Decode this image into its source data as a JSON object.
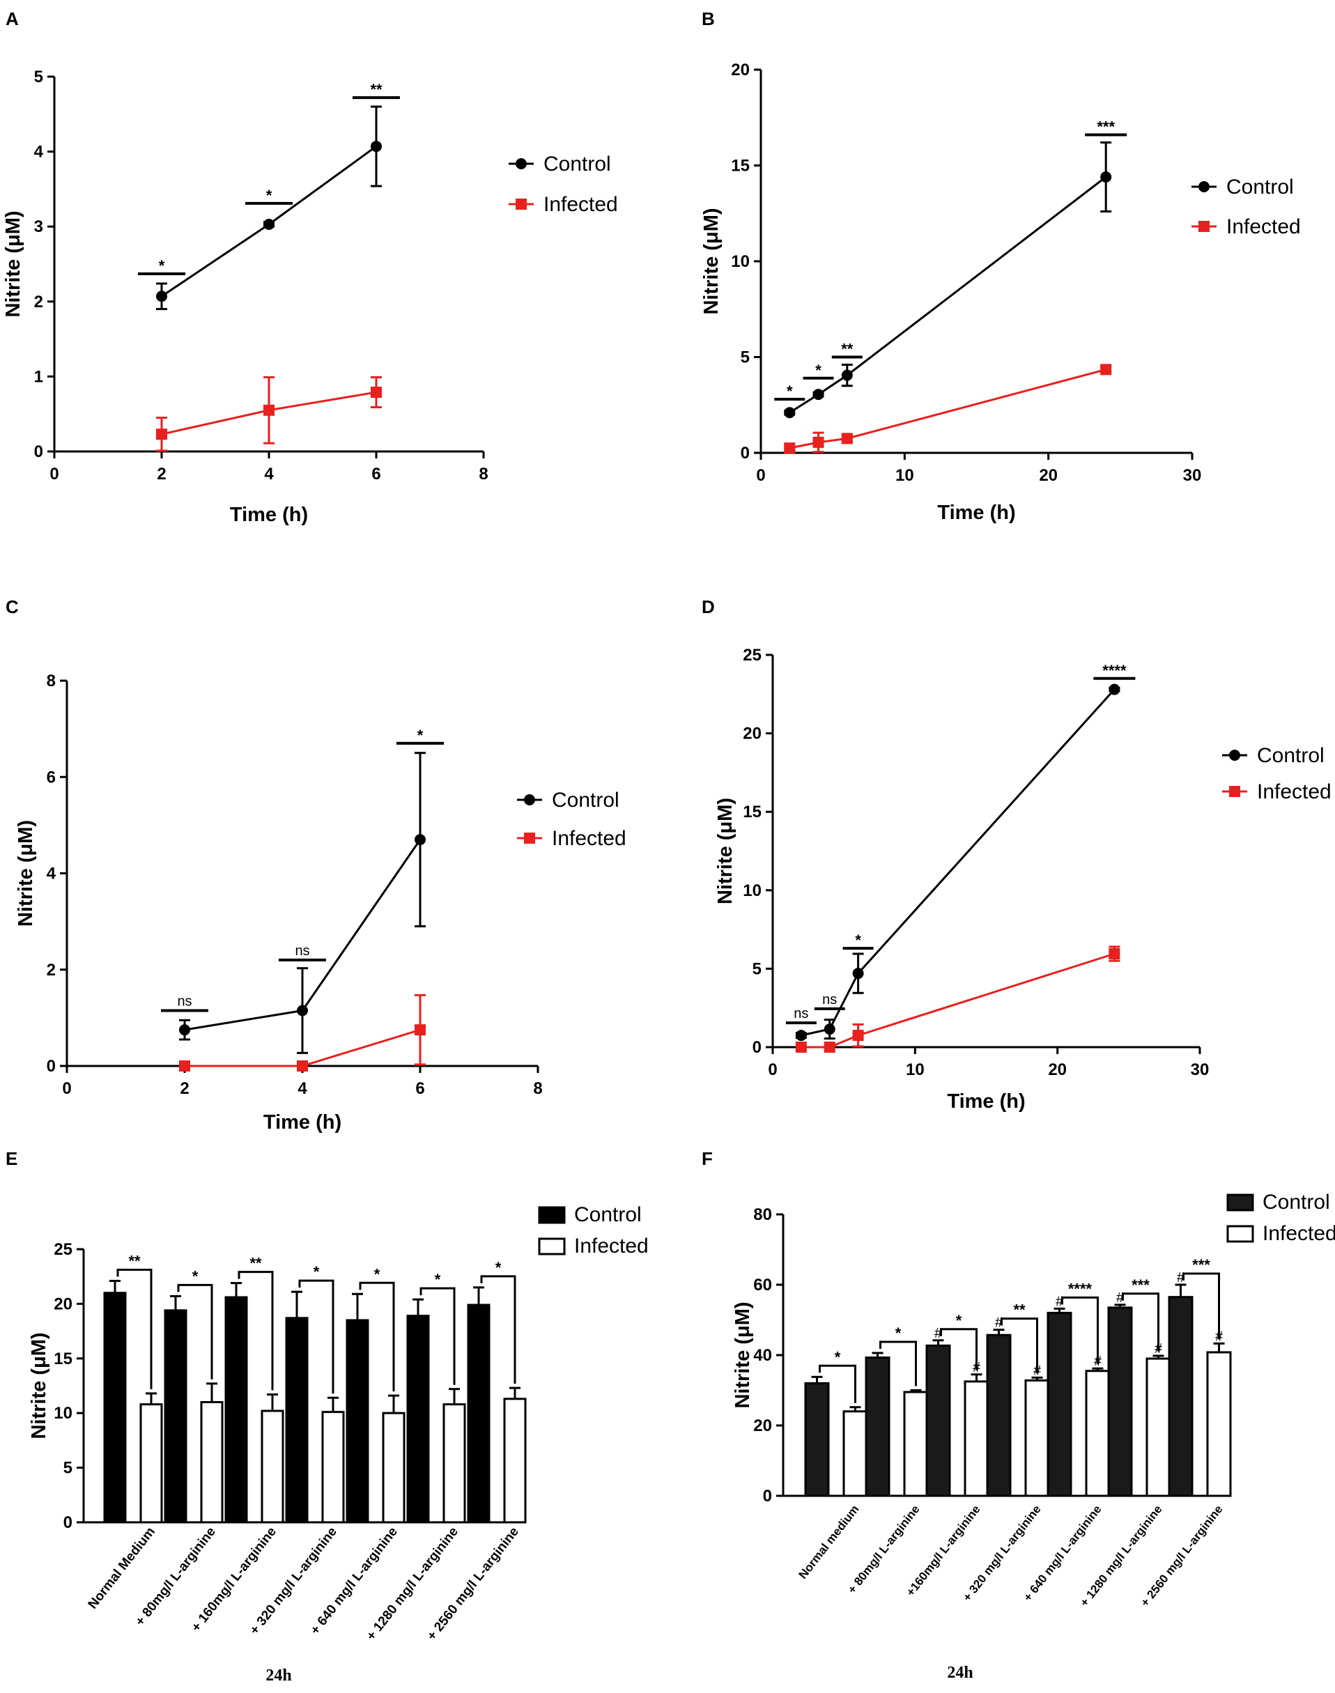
{
  "chart_data": [
    {
      "panel": "A",
      "type": "line",
      "xlabel": "Time (h)",
      "ylabel": "Nitrite (μM)",
      "xlim": [
        0,
        8
      ],
      "ylim": [
        0,
        5
      ],
      "xticks": [
        "0",
        "2",
        "4",
        "6",
        "8"
      ],
      "yticks": [
        "0",
        "1",
        "2",
        "3",
        "4",
        "5"
      ],
      "series": [
        {
          "name": "Control",
          "color": "#000000",
          "marker": "circle",
          "x": [
            2,
            4,
            6
          ],
          "y": [
            2.07,
            3.03,
            4.07
          ],
          "err": [
            0.17,
            0.03,
            0.53
          ]
        },
        {
          "name": "Infected",
          "color": "#e8201e",
          "marker": "square",
          "x": [
            2,
            4,
            6
          ],
          "y": [
            0.23,
            0.55,
            0.79
          ],
          "err": [
            0.22,
            0.44,
            0.2
          ]
        }
      ],
      "annotations": [
        {
          "x": 2,
          "y": 2.37,
          "label": "*"
        },
        {
          "x": 4,
          "y": 3.31,
          "label": "*"
        },
        {
          "x": 6,
          "y": 4.72,
          "label": "**"
        }
      ],
      "legend_position": "right"
    },
    {
      "panel": "B",
      "type": "line",
      "xlabel": "Time (h)",
      "ylabel": "Nitrite (μM)",
      "xlim": [
        0,
        30
      ],
      "ylim": [
        0,
        20
      ],
      "xticks": [
        "0",
        "10",
        "20",
        "30"
      ],
      "yticks": [
        "0",
        "5",
        "10",
        "15",
        "20"
      ],
      "series": [
        {
          "name": "Control",
          "color": "#000000",
          "marker": "circle",
          "x": [
            2,
            4,
            6,
            24
          ],
          "y": [
            2.1,
            3.05,
            4.05,
            14.4
          ],
          "err": [
            0.1,
            0.1,
            0.55,
            1.8
          ]
        },
        {
          "name": "Infected",
          "color": "#e8201e",
          "marker": "square",
          "x": [
            2,
            4,
            6,
            24
          ],
          "y": [
            0.25,
            0.55,
            0.75,
            4.35
          ],
          "err": [
            0.1,
            0.5,
            0.2,
            0.15
          ]
        }
      ],
      "annotations": [
        {
          "x": 2,
          "y": 2.8,
          "label": "*"
        },
        {
          "x": 4,
          "y": 3.9,
          "label": "*"
        },
        {
          "x": 6,
          "y": 5.0,
          "label": "**"
        },
        {
          "x": 24,
          "y": 16.6,
          "label": "***"
        }
      ],
      "legend_position": "right"
    },
    {
      "panel": "C",
      "type": "line",
      "xlabel": "Time (h)",
      "ylabel": "Nitrite (μM)",
      "xlim": [
        0,
        8
      ],
      "ylim": [
        0,
        8
      ],
      "xticks": [
        "0",
        "2",
        "4",
        "6",
        "8"
      ],
      "yticks": [
        "0",
        "2",
        "4",
        "6",
        "8"
      ],
      "series": [
        {
          "name": "Control",
          "color": "#000000",
          "marker": "circle",
          "x": [
            2,
            4,
            6
          ],
          "y": [
            0.75,
            1.15,
            4.7
          ],
          "err": [
            0.2,
            0.88,
            1.8
          ]
        },
        {
          "name": "Infected",
          "color": "#e8201e",
          "marker": "square",
          "x": [
            2,
            4,
            6
          ],
          "y": [
            0.0,
            0.0,
            0.75
          ],
          "err": [
            0.0,
            0.0,
            0.72
          ]
        }
      ],
      "annotations": [
        {
          "x": 2,
          "y": 1.15,
          "label": "ns"
        },
        {
          "x": 4,
          "y": 2.2,
          "label": "ns"
        },
        {
          "x": 6,
          "y": 6.7,
          "label": "*"
        }
      ],
      "legend_position": "right"
    },
    {
      "panel": "D",
      "type": "line",
      "xlabel": "Time (h)",
      "ylabel": "Nitrite (μM)",
      "xlim": [
        0,
        30
      ],
      "ylim": [
        0,
        25
      ],
      "xticks": [
        "0",
        "10",
        "20",
        "30"
      ],
      "yticks": [
        "0",
        "5",
        "10",
        "15",
        "20",
        "25"
      ],
      "series": [
        {
          "name": "Control",
          "color": "#000000",
          "marker": "circle",
          "x": [
            2,
            4,
            6,
            24
          ],
          "y": [
            0.75,
            1.15,
            4.7,
            22.8
          ],
          "err": [
            0.15,
            0.6,
            1.25,
            0.1
          ]
        },
        {
          "name": "Infected",
          "color": "#e8201e",
          "marker": "square",
          "x": [
            2,
            4,
            6,
            24
          ],
          "y": [
            0.0,
            0.0,
            0.75,
            5.95
          ],
          "err": [
            0.0,
            0.0,
            0.7,
            0.45
          ]
        }
      ],
      "annotations": [
        {
          "x": 2,
          "y": 1.55,
          "label": "ns"
        },
        {
          "x": 4,
          "y": 2.45,
          "label": "ns"
        },
        {
          "x": 6,
          "y": 6.3,
          "label": "*"
        },
        {
          "x": 24,
          "y": 23.5,
          "label": "****"
        }
      ],
      "legend_position": "right"
    },
    {
      "panel": "E",
      "type": "bar",
      "ylabel": "Nitrite (μM)",
      "ylim": [
        0,
        25
      ],
      "yticks": [
        "0",
        "5",
        "10",
        "15",
        "20",
        "25"
      ],
      "categories": [
        "Normal Medium",
        "+ 80mg/l L-arginine",
        "+ 160mg/l L-arginine",
        "+ 320 mg/l L-arginine",
        "+ 640 mg/l L-arginine",
        "+ 1280 mg/l L-arginine",
        "+ 2560 mg/l L-arginine"
      ],
      "series": [
        {
          "name": "Control",
          "fill": "#000000",
          "values": [
            21.0,
            19.4,
            20.6,
            18.7,
            18.5,
            18.9,
            19.9
          ],
          "err": [
            1.1,
            1.3,
            1.3,
            2.4,
            2.4,
            1.5,
            1.6
          ]
        },
        {
          "name": "Infected",
          "fill": "#ffffff",
          "values": [
            10.8,
            11.0,
            10.2,
            10.1,
            10.0,
            10.8,
            11.3
          ],
          "err": [
            1.0,
            1.7,
            1.5,
            1.3,
            1.6,
            1.4,
            1.0
          ]
        }
      ],
      "significance": [
        "**",
        "*",
        "**",
        "*",
        "*",
        "*",
        "*"
      ],
      "xlabel_bottom": "24h",
      "legend_position": "top-right"
    },
    {
      "panel": "F",
      "type": "bar",
      "ylabel": "Nitrite (μM)",
      "ylim": [
        0,
        80
      ],
      "yticks": [
        "0",
        "20",
        "40",
        "60",
        "80"
      ],
      "categories": [
        "Normal medium",
        "+ 80mg/l L-arginine",
        "+160mg/l L-arginine",
        "+ 320 mg/l L-arginine",
        "+ 640 mg/l L-arginine",
        "+ 1280 mg/l L-arginine",
        "+ 2560 mg/l L-arginine"
      ],
      "series": [
        {
          "name": "Control",
          "fill": "#1a1a1a",
          "values": [
            32.0,
            39.3,
            42.7,
            45.7,
            52.0,
            53.5,
            56.5
          ],
          "err": [
            1.8,
            1.3,
            1.5,
            1.5,
            1.2,
            0.8,
            3.5
          ]
        },
        {
          "name": "Infected",
          "fill": "#ffffff",
          "values": [
            24.0,
            29.5,
            32.5,
            32.8,
            35.5,
            39.0,
            40.8
          ],
          "err": [
            1.2,
            0.5,
            2.0,
            0.8,
            0.7,
            0.8,
            2.5
          ]
        }
      ],
      "significance": [
        "*",
        "*",
        "*",
        "**",
        "****",
        "***",
        "***"
      ],
      "hash_marks": {
        "control": [
          false,
          false,
          true,
          true,
          true,
          true,
          true
        ],
        "infected": [
          false,
          false,
          true,
          true,
          true,
          true,
          true
        ],
        "label": "#"
      },
      "xlabel_bottom": "24h",
      "legend_position": "top-right"
    }
  ]
}
